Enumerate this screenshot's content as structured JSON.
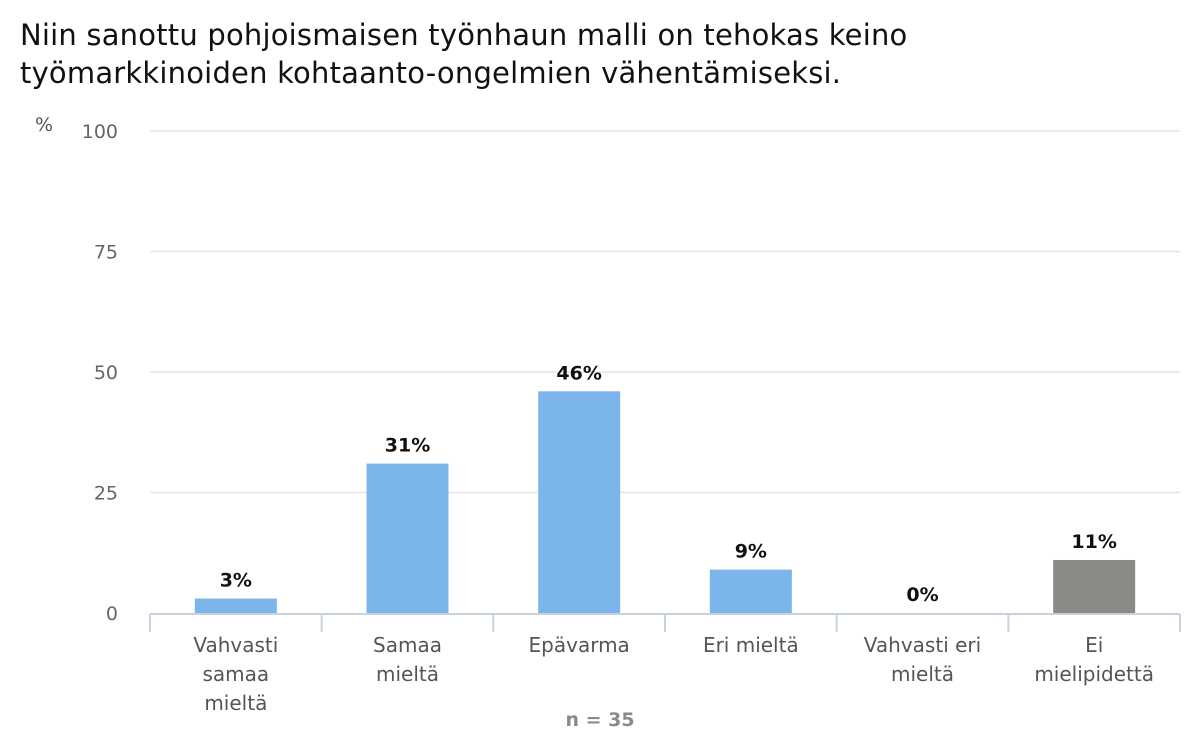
{
  "chart_data": {
    "type": "bar",
    "title": "Niin sanottu pohjoismaisen työnhaun malli on tehokas keino työmarkkinoiden kohtaanto-ongelmien vähentämiseksi.",
    "ylabel": "%",
    "ylim": [
      0,
      100
    ],
    "yticks": [
      0,
      25,
      50,
      75,
      100
    ],
    "grid": true,
    "categories": [
      [
        "Vahvasti",
        "samaa",
        "mieltä"
      ],
      [
        "Samaa",
        "mieltä"
      ],
      [
        "Epävarma"
      ],
      [
        "Eri mieltä"
      ],
      [
        "Vahvasti eri",
        "mieltä"
      ],
      [
        "Ei",
        "mielipidettä"
      ]
    ],
    "values": [
      3,
      31,
      46,
      9,
      0,
      11
    ],
    "data_labels": [
      "3%",
      "31%",
      "46%",
      "9%",
      "0%",
      "11%"
    ],
    "colors": [
      "#7cb5ec",
      "#7cb5ec",
      "#7cb5ec",
      "#7cb5ec",
      "#7cb5ec",
      "#8a8a87"
    ],
    "footnote": "n = 35"
  }
}
